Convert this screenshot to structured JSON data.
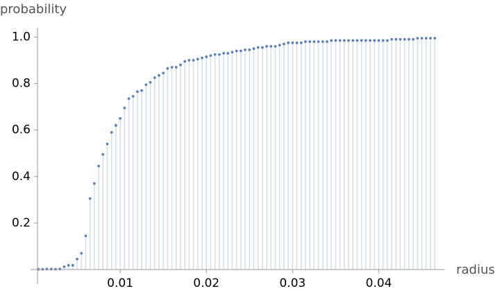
{
  "chart_data": {
    "type": "discrete",
    "x_label": "radius",
    "y_label": "probability",
    "x": [
      0.0005,
      0.001,
      0.0015,
      0.002,
      0.0025,
      0.003,
      0.0035,
      0.004,
      0.0045,
      0.005,
      0.0055,
      0.006,
      0.0065,
      0.007,
      0.0075,
      0.008,
      0.0085,
      0.009,
      0.0095,
      0.01,
      0.0105,
      0.011,
      0.0115,
      0.012,
      0.0125,
      0.013,
      0.0135,
      0.014,
      0.0145,
      0.015,
      0.0155,
      0.016,
      0.0165,
      0.017,
      0.0175,
      0.018,
      0.0185,
      0.019,
      0.0195,
      0.02,
      0.0205,
      0.021,
      0.0215,
      0.022,
      0.0225,
      0.023,
      0.0235,
      0.024,
      0.0245,
      0.025,
      0.0255,
      0.026,
      0.0265,
      0.027,
      0.0275,
      0.028,
      0.0285,
      0.029,
      0.0295,
      0.03,
      0.0305,
      0.031,
      0.0315,
      0.032,
      0.0325,
      0.033,
      0.0335,
      0.034,
      0.0345,
      0.035,
      0.0355,
      0.036,
      0.0365,
      0.037,
      0.0375,
      0.038,
      0.0385,
      0.039,
      0.0395,
      0.04,
      0.0405,
      0.041,
      0.0415,
      0.042,
      0.0425,
      0.043,
      0.0435,
      0.044,
      0.0445,
      0.045,
      0.0455,
      0.046,
      0.0465
    ],
    "values": [
      0.001,
      0.001,
      0.002,
      0.002,
      0.001,
      0.002,
      0.012,
      0.018,
      0.018,
      0.045,
      0.07,
      0.145,
      0.305,
      0.37,
      0.445,
      0.495,
      0.54,
      0.59,
      0.62,
      0.65,
      0.695,
      0.735,
      0.745,
      0.765,
      0.77,
      0.795,
      0.805,
      0.825,
      0.835,
      0.845,
      0.865,
      0.87,
      0.87,
      0.88,
      0.895,
      0.9,
      0.9,
      0.905,
      0.91,
      0.915,
      0.92,
      0.925,
      0.925,
      0.93,
      0.93,
      0.935,
      0.94,
      0.94,
      0.945,
      0.945,
      0.95,
      0.955,
      0.955,
      0.96,
      0.96,
      0.96,
      0.965,
      0.97,
      0.975,
      0.975,
      0.975,
      0.975,
      0.98,
      0.98,
      0.98,
      0.98,
      0.98,
      0.98,
      0.985,
      0.985,
      0.985,
      0.985,
      0.985,
      0.985,
      0.985,
      0.985,
      0.985,
      0.985,
      0.985,
      0.985,
      0.985,
      0.985,
      0.99,
      0.99,
      0.99,
      0.99,
      0.99,
      0.99,
      0.995,
      0.995,
      0.995,
      0.995,
      0.995
    ],
    "color": "#5e81b5",
    "stem_color": "#d3dfea",
    "xlim": [
      -0.0004,
      0.0473
    ],
    "xticks": [
      0.01,
      0.02,
      0.03,
      0.04
    ],
    "ylim": [
      0,
      1.04
    ],
    "yticks": [
      0.2,
      0.4,
      0.6,
      0.8,
      {
        "value": 1,
        "label": "1.0"
      }
    ]
  }
}
